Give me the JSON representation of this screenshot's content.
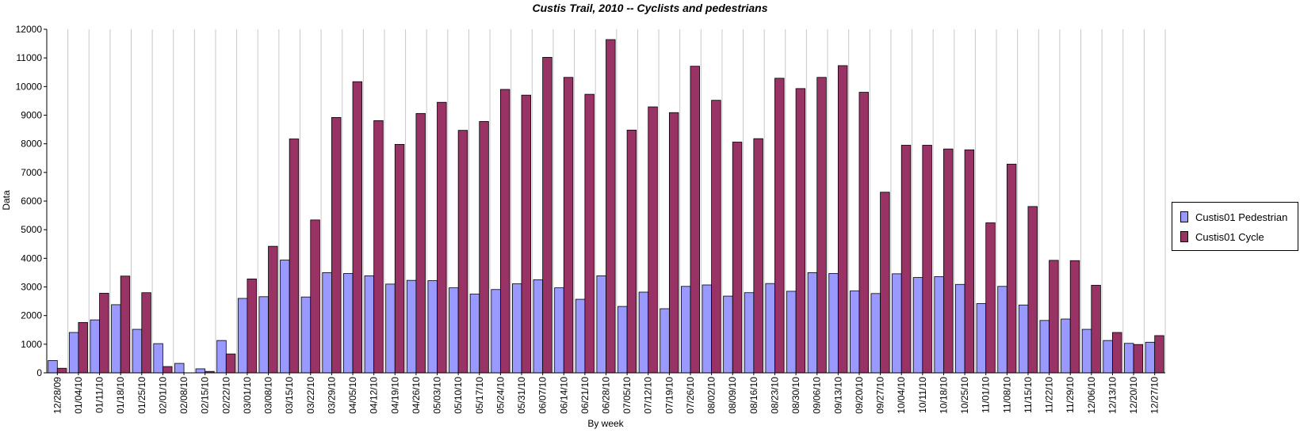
{
  "chart_data": {
    "type": "bar",
    "title": "Custis Trail, 2010 -- Cyclists and pedestrians",
    "xlabel": "By week",
    "ylabel": "Data",
    "ylim": [
      0,
      12000
    ],
    "yticks": [
      0,
      1000,
      2000,
      3000,
      4000,
      5000,
      6000,
      7000,
      8000,
      9000,
      10000,
      11000,
      12000
    ],
    "grid": "vertical",
    "legend_position": "right",
    "categories": [
      "12/28/09",
      "01/04/10",
      "01/11/10",
      "01/18/10",
      "01/25/10",
      "02/01/10",
      "02/08/10",
      "02/15/10",
      "02/22/10",
      "03/01/10",
      "03/08/10",
      "03/15/10",
      "03/22/10",
      "03/29/10",
      "04/05/10",
      "04/12/10",
      "04/19/10",
      "04/26/10",
      "05/03/10",
      "05/10/10",
      "05/17/10",
      "05/24/10",
      "05/31/10",
      "06/07/10",
      "06/14/10",
      "06/21/10",
      "06/28/10",
      "07/05/10",
      "07/12/10",
      "07/19/10",
      "07/26/10",
      "08/02/10",
      "08/09/10",
      "08/16/10",
      "08/23/10",
      "08/30/10",
      "09/06/10",
      "09/13/10",
      "09/20/10",
      "09/27/10",
      "10/04/10",
      "10/11/10",
      "10/18/10",
      "10/25/10",
      "11/01/10",
      "11/08/10",
      "11/15/10",
      "11/22/10",
      "11/29/10",
      "12/06/10",
      "12/13/10",
      "12/20/10",
      "12/27/10"
    ],
    "series": [
      {
        "name": "Custis01 Pedestrian",
        "color": "#9999ff",
        "values": [
          430,
          1410,
          1850,
          2380,
          1520,
          1020,
          330,
          140,
          1130,
          2600,
          2660,
          3940,
          2650,
          3500,
          3470,
          3390,
          3100,
          3230,
          3220,
          2970,
          2750,
          2910,
          3110,
          3250,
          2970,
          2570,
          3390,
          2320,
          2820,
          2240,
          3020,
          3070,
          2680,
          2800,
          3120,
          2850,
          3500,
          3470,
          2860,
          2770,
          3460,
          3330,
          3360,
          3090,
          2420,
          3020,
          2370,
          1830,
          1880,
          1520,
          1130,
          1030,
          1070
        ]
      },
      {
        "name": "Custis01 Cycle",
        "color": "#993366",
        "values": [
          160,
          1760,
          2780,
          3380,
          2800,
          220,
          0,
          50,
          660,
          3280,
          4420,
          8170,
          5340,
          8920,
          10170,
          8810,
          7980,
          9060,
          9450,
          8470,
          8780,
          9900,
          9700,
          11020,
          10320,
          9730,
          11640,
          8480,
          9290,
          9090,
          10710,
          9520,
          8060,
          8180,
          10290,
          9930,
          10320,
          10730,
          9800,
          6310,
          7950,
          7950,
          7820,
          7790,
          5240,
          7290,
          5810,
          3930,
          3920,
          3060,
          1410,
          990,
          1300
        ]
      }
    ]
  }
}
